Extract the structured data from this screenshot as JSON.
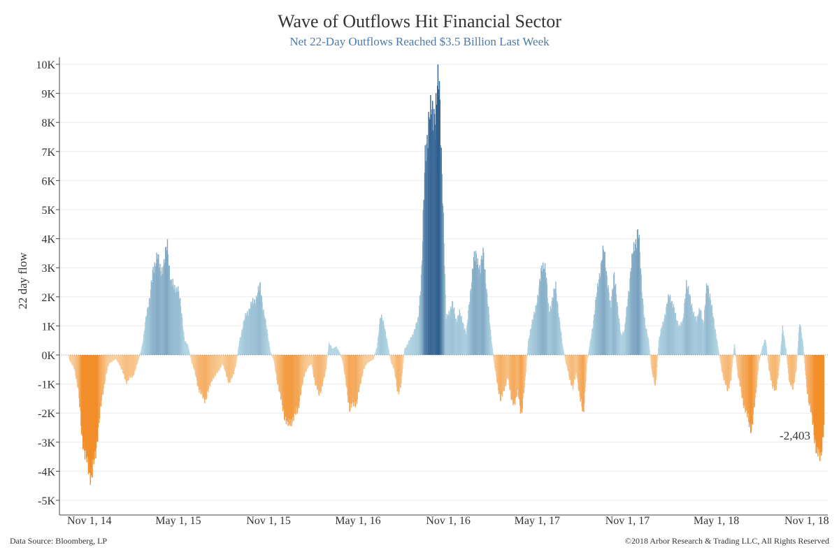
{
  "chart_data": {
    "type": "bar",
    "title": "Wave of Outflows Hit Financial Sector",
    "subtitle": "Net 22-Day Outflows Reached $3.5 Billion Last Week",
    "ylabel": "22 day flow",
    "xlabel": "",
    "ylim": [
      -5000,
      10000
    ],
    "y_ticks": [
      -5000,
      -4000,
      -3000,
      -2000,
      -1000,
      0,
      1000,
      2000,
      3000,
      4000,
      5000,
      6000,
      7000,
      8000,
      9000,
      10000
    ],
    "y_tick_labels": [
      "-5K",
      "-4K",
      "-3K",
      "-2K",
      "-1K",
      "0K",
      "1K",
      "2K",
      "3K",
      "4K",
      "5K",
      "6K",
      "7K",
      "8K",
      "9K",
      "10K"
    ],
    "x_range": [
      "2014-09-01",
      "2018-12-14"
    ],
    "x_ticks": [
      {
        "date": "2014-11-01",
        "label": "Nov 1, 14"
      },
      {
        "date": "2015-05-01",
        "label": "May 1, 15"
      },
      {
        "date": "2015-11-01",
        "label": "Nov 1, 15"
      },
      {
        "date": "2016-05-01",
        "label": "May 1, 16"
      },
      {
        "date": "2016-11-01",
        "label": "Nov 1, 16"
      },
      {
        "date": "2017-05-01",
        "label": "May 1, 17"
      },
      {
        "date": "2017-11-01",
        "label": "Nov 1, 17"
      },
      {
        "date": "2018-05-01",
        "label": "May 1, 18"
      },
      {
        "date": "2018-11-01",
        "label": "Nov 1, 18"
      }
    ],
    "grid": true,
    "color_scale": {
      "negative": "#f28e2b",
      "negative_light": "#f9d5a8",
      "positive": "#2f5f8f",
      "positive_light": "#b9dbe8"
    },
    "series": [
      {
        "values": [
          [
            "2014-09-20",
            -150
          ],
          [
            "2014-10-01",
            -500
          ],
          [
            "2014-10-08",
            -1100
          ],
          [
            "2014-10-15",
            -2600
          ],
          [
            "2014-10-22",
            -3300
          ],
          [
            "2014-10-29",
            -3900
          ],
          [
            "2014-11-05",
            -4000
          ],
          [
            "2014-11-12",
            -3500
          ],
          [
            "2014-11-19",
            -2300
          ],
          [
            "2014-11-26",
            -1500
          ],
          [
            "2014-12-03",
            -700
          ],
          [
            "2014-12-10",
            -300
          ],
          [
            "2014-12-17",
            -200
          ],
          [
            "2014-12-24",
            -150
          ],
          [
            "2014-12-31",
            -300
          ],
          [
            "2015-01-07",
            -600
          ],
          [
            "2015-01-14",
            -900
          ],
          [
            "2015-01-21",
            -800
          ],
          [
            "2015-01-28",
            -700
          ],
          [
            "2015-02-04",
            -400
          ],
          [
            "2015-02-11",
            0
          ],
          [
            "2015-02-18",
            500
          ],
          [
            "2015-02-25",
            1500
          ],
          [
            "2015-03-04",
            2000
          ],
          [
            "2015-03-11",
            3000
          ],
          [
            "2015-03-18",
            3350
          ],
          [
            "2015-03-25",
            2800
          ],
          [
            "2015-04-01",
            3100
          ],
          [
            "2015-04-08",
            3650
          ],
          [
            "2015-04-15",
            2500
          ],
          [
            "2015-04-22",
            2200
          ],
          [
            "2015-04-29",
            2350
          ],
          [
            "2015-05-06",
            1500
          ],
          [
            "2015-05-13",
            500
          ],
          [
            "2015-05-20",
            300
          ],
          [
            "2015-05-27",
            -200
          ],
          [
            "2015-06-03",
            -600
          ],
          [
            "2015-06-10",
            -1100
          ],
          [
            "2015-06-17",
            -1400
          ],
          [
            "2015-06-24",
            -1500
          ],
          [
            "2015-07-01",
            -1200
          ],
          [
            "2015-07-08",
            -800
          ],
          [
            "2015-07-15",
            -700
          ],
          [
            "2015-07-22",
            -500
          ],
          [
            "2015-07-29",
            -300
          ],
          [
            "2015-08-05",
            -600
          ],
          [
            "2015-08-12",
            -1000
          ],
          [
            "2015-08-19",
            -700
          ],
          [
            "2015-08-26",
            -300
          ],
          [
            "2015-09-02",
            500
          ],
          [
            "2015-09-09",
            1000
          ],
          [
            "2015-09-16",
            1400
          ],
          [
            "2015-09-23",
            1600
          ],
          [
            "2015-09-30",
            1800
          ],
          [
            "2015-10-07",
            2000
          ],
          [
            "2015-10-14",
            2300
          ],
          [
            "2015-10-21",
            1500
          ],
          [
            "2015-10-28",
            800
          ],
          [
            "2015-11-04",
            100
          ],
          [
            "2015-11-11",
            -200
          ],
          [
            "2015-11-18",
            -900
          ],
          [
            "2015-11-25",
            -1500
          ],
          [
            "2015-12-02",
            -2000
          ],
          [
            "2015-12-09",
            -2400
          ],
          [
            "2015-12-16",
            -2200
          ],
          [
            "2015-12-23",
            -2100
          ],
          [
            "2015-12-30",
            -1800
          ],
          [
            "2016-01-06",
            -1200
          ],
          [
            "2016-01-13",
            -600
          ],
          [
            "2016-01-20",
            -400
          ],
          [
            "2016-01-27",
            -300
          ],
          [
            "2016-02-03",
            -1000
          ],
          [
            "2016-02-10",
            -1300
          ],
          [
            "2016-02-17",
            -1100
          ],
          [
            "2016-02-24",
            -600
          ],
          [
            "2016-03-02",
            400
          ],
          [
            "2016-03-09",
            200
          ],
          [
            "2016-03-16",
            300
          ],
          [
            "2016-03-23",
            100
          ],
          [
            "2016-03-30",
            -200
          ],
          [
            "2016-04-06",
            -1000
          ],
          [
            "2016-04-13",
            -1800
          ],
          [
            "2016-04-20",
            -1700
          ],
          [
            "2016-04-27",
            -1600
          ],
          [
            "2016-05-04",
            -1100
          ],
          [
            "2016-05-11",
            -500
          ],
          [
            "2016-05-18",
            -300
          ],
          [
            "2016-05-25",
            -200
          ],
          [
            "2016-06-01",
            -150
          ],
          [
            "2016-06-08",
            300
          ],
          [
            "2016-06-15",
            1300
          ],
          [
            "2016-06-22",
            1100
          ],
          [
            "2016-06-29",
            400
          ],
          [
            "2016-07-06",
            -200
          ],
          [
            "2016-07-13",
            -500
          ],
          [
            "2016-07-20",
            -1300
          ],
          [
            "2016-07-27",
            -1000
          ],
          [
            "2016-08-03",
            200
          ],
          [
            "2016-08-10",
            400
          ],
          [
            "2016-08-17",
            600
          ],
          [
            "2016-08-24",
            900
          ],
          [
            "2016-08-31",
            1200
          ],
          [
            "2016-09-07",
            3000
          ],
          [
            "2016-09-14",
            6500
          ],
          [
            "2016-09-21",
            8100
          ],
          [
            "2016-09-28",
            7900
          ],
          [
            "2016-10-05",
            8500
          ],
          [
            "2016-10-12",
            9100
          ],
          [
            "2016-10-19",
            6000
          ],
          [
            "2016-10-26",
            1200
          ],
          [
            "2016-11-02",
            1500
          ],
          [
            "2016-11-09",
            1700
          ],
          [
            "2016-11-16",
            1200
          ],
          [
            "2016-11-23",
            1400
          ],
          [
            "2016-11-30",
            1100
          ],
          [
            "2016-12-07",
            700
          ],
          [
            "2016-12-14",
            2000
          ],
          [
            "2016-12-21",
            3100
          ],
          [
            "2016-12-28",
            3400
          ],
          [
            "2017-01-04",
            2800
          ],
          [
            "2017-01-11",
            3500
          ],
          [
            "2017-01-18",
            2000
          ],
          [
            "2017-01-25",
            800
          ],
          [
            "2017-02-01",
            -200
          ],
          [
            "2017-02-08",
            -1000
          ],
          [
            "2017-02-15",
            -1500
          ],
          [
            "2017-02-22",
            -1200
          ],
          [
            "2017-03-01",
            -700
          ],
          [
            "2017-03-08",
            -1500
          ],
          [
            "2017-03-15",
            -1600
          ],
          [
            "2017-03-22",
            -1300
          ],
          [
            "2017-03-29",
            -2000
          ],
          [
            "2017-04-05",
            -1000
          ],
          [
            "2017-04-12",
            500
          ],
          [
            "2017-04-19",
            1000
          ],
          [
            "2017-04-26",
            1600
          ],
          [
            "2017-05-03",
            2000
          ],
          [
            "2017-05-10",
            3200
          ],
          [
            "2017-05-17",
            2800
          ],
          [
            "2017-05-24",
            1500
          ],
          [
            "2017-05-31",
            1800
          ],
          [
            "2017-06-07",
            2400
          ],
          [
            "2017-06-14",
            1200
          ],
          [
            "2017-06-21",
            300
          ],
          [
            "2017-06-28",
            -300
          ],
          [
            "2017-07-05",
            -800
          ],
          [
            "2017-07-12",
            -1100
          ],
          [
            "2017-07-19",
            -600
          ],
          [
            "2017-07-26",
            -1400
          ],
          [
            "2017-08-02",
            -2100
          ],
          [
            "2017-08-09",
            -300
          ],
          [
            "2017-08-16",
            400
          ],
          [
            "2017-08-23",
            1200
          ],
          [
            "2017-08-30",
            2100
          ],
          [
            "2017-09-06",
            3000
          ],
          [
            "2017-09-13",
            3500
          ],
          [
            "2017-09-20",
            2600
          ],
          [
            "2017-09-27",
            1500
          ],
          [
            "2017-10-04",
            2900
          ],
          [
            "2017-10-11",
            1500
          ],
          [
            "2017-10-18",
            700
          ],
          [
            "2017-10-25",
            800
          ],
          [
            "2017-11-01",
            2000
          ],
          [
            "2017-11-08",
            3000
          ],
          [
            "2017-11-15",
            3800
          ],
          [
            "2017-11-22",
            4200
          ],
          [
            "2017-11-29",
            2300
          ],
          [
            "2017-12-06",
            1000
          ],
          [
            "2017-12-13",
            500
          ],
          [
            "2017-12-20",
            -600
          ],
          [
            "2017-12-27",
            -1100
          ],
          [
            "2018-01-03",
            500
          ],
          [
            "2018-01-10",
            1000
          ],
          [
            "2018-01-17",
            1500
          ],
          [
            "2018-01-24",
            2000
          ],
          [
            "2018-01-31",
            1800
          ],
          [
            "2018-02-07",
            1200
          ],
          [
            "2018-02-14",
            1000
          ],
          [
            "2018-02-21",
            1100
          ],
          [
            "2018-02-28",
            2500
          ],
          [
            "2018-03-07",
            1900
          ],
          [
            "2018-03-14",
            1500
          ],
          [
            "2018-03-21",
            1100
          ],
          [
            "2018-03-28",
            1700
          ],
          [
            "2018-04-04",
            900
          ],
          [
            "2018-04-11",
            2600
          ],
          [
            "2018-04-18",
            1800
          ],
          [
            "2018-04-25",
            1200
          ],
          [
            "2018-05-02",
            400
          ],
          [
            "2018-05-09",
            -300
          ],
          [
            "2018-05-16",
            -900
          ],
          [
            "2018-05-23",
            -1200
          ],
          [
            "2018-05-30",
            -800
          ],
          [
            "2018-06-06",
            400
          ],
          [
            "2018-06-13",
            -700
          ],
          [
            "2018-06-20",
            -1300
          ],
          [
            "2018-06-27",
            -1800
          ],
          [
            "2018-07-04",
            -2200
          ],
          [
            "2018-07-11",
            -2500
          ],
          [
            "2018-07-18",
            -1600
          ],
          [
            "2018-07-25",
            -300
          ],
          [
            "2018-08-01",
            200
          ],
          [
            "2018-08-08",
            600
          ],
          [
            "2018-08-15",
            -500
          ],
          [
            "2018-08-22",
            -1000
          ],
          [
            "2018-08-29",
            -1300
          ],
          [
            "2018-09-05",
            -400
          ],
          [
            "2018-09-12",
            900
          ],
          [
            "2018-09-19",
            200
          ],
          [
            "2018-09-26",
            -1000
          ],
          [
            "2018-10-03",
            -1100
          ],
          [
            "2018-10-10",
            -500
          ],
          [
            "2018-10-17",
            1200
          ],
          [
            "2018-10-24",
            300
          ],
          [
            "2018-10-31",
            -1100
          ],
          [
            "2018-11-07",
            -1800
          ],
          [
            "2018-11-14",
            -2500
          ],
          [
            "2018-11-21",
            -3300
          ],
          [
            "2018-11-28",
            -3500
          ],
          [
            "2018-12-05",
            -2403
          ]
        ]
      }
    ],
    "annotations": [
      {
        "date": "2018-12-05",
        "value": -2403,
        "text": "-2,403"
      }
    ]
  },
  "footer": {
    "source": "Data Source: Bloomberg, LP",
    "copyright": "©2018 Arbor Research & Trading LLC, All Rights Reserved"
  }
}
